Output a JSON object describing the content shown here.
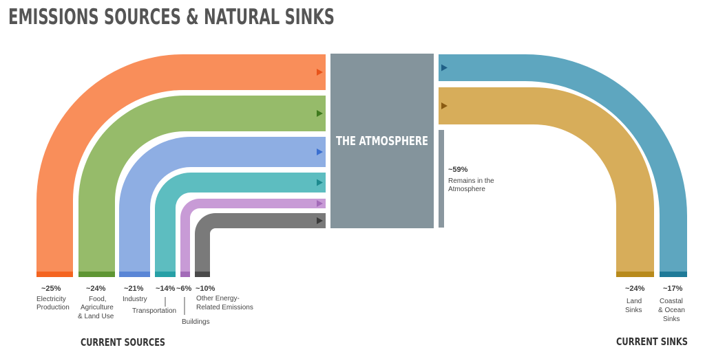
{
  "title": "EMISSIONS SOURCES & NATURAL SINKS",
  "atmosphere_label": "THE ATMOSPHERE",
  "remains": {
    "value": "~59%",
    "label_lines": [
      "Remains in the",
      "Atmosphere"
    ],
    "color": "#8a979f"
  },
  "sources_caption": "CURRENT SOURCES",
  "sinks_caption": "CURRENT SINKS",
  "colors": {
    "atmosphere": "#84949c"
  },
  "chart_data": {
    "type": "sankey",
    "sources": [
      {
        "value": "~25%",
        "label_lines": [
          "Electricity",
          "Production"
        ],
        "color": "#f98e5a",
        "foot": "#f46420",
        "arrow": "#e8541a"
      },
      {
        "value": "~24%",
        "label_lines": [
          "Food,",
          "Agriculture",
          "& Land Use"
        ],
        "color": "#96bb6a",
        "foot": "#5f9634",
        "arrow": "#3f7a1e"
      },
      {
        "value": "~21%",
        "label_lines": [
          "Industry"
        ],
        "color": "#8eaee3",
        "foot": "#5a86d6",
        "arrow": "#3b6fd0"
      },
      {
        "value": "~14%",
        "label_lines": [
          "Transportation"
        ],
        "color": "#5dbdc0",
        "foot": "#27a0a6",
        "arrow": "#1d8a8e"
      },
      {
        "value": "~6%",
        "label_lines": [
          "Buildings"
        ],
        "color": "#c89bd6",
        "foot": "#a36bb8",
        "arrow": "#a36bb8"
      },
      {
        "value": "~10%",
        "label_lines": [
          "Other Energy-",
          "Related Emissions"
        ],
        "color": "#7a7a7a",
        "foot": "#4a4a4a",
        "arrow": "#3a3a3a"
      }
    ],
    "sinks": [
      {
        "value": "~24%",
        "label_lines": [
          "Land",
          "Sinks"
        ],
        "color": "#d7ad5a",
        "foot": "#b88a1c",
        "arrow": "#8a5a12"
      },
      {
        "value": "~17%",
        "label_lines": [
          "Coastal",
          "& Ocean",
          "Sinks"
        ],
        "color": "#5ea6bf",
        "foot": "#1f7a98",
        "arrow": "#1f5f86"
      }
    ]
  }
}
